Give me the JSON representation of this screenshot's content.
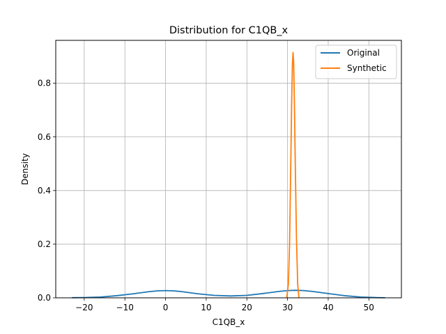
{
  "chart_data": {
    "type": "line",
    "title": "Distribution for C1QB_x",
    "xlabel": "C1QB_x",
    "ylabel": "Density",
    "xlim": [
      -27,
      58
    ],
    "ylim": [
      0,
      0.96
    ],
    "xticks": [
      -20,
      -10,
      0,
      10,
      20,
      30,
      40,
      50
    ],
    "yticks": [
      0.0,
      0.2,
      0.4,
      0.6,
      0.8
    ],
    "xtick_labels": [
      "−20",
      "−10",
      "0",
      "10",
      "20",
      "30",
      "40",
      "50"
    ],
    "ytick_labels": [
      "0.0",
      "0.2",
      "0.4",
      "0.6",
      "0.8"
    ],
    "grid": true,
    "legend_position": "top-right",
    "series": [
      {
        "name": "Original",
        "color": "#1f77b4",
        "x": [
          -23,
          -20,
          -16,
          -12,
          -8,
          -4,
          -2,
          0,
          2,
          4,
          8,
          12,
          16,
          20,
          24,
          28,
          30,
          32,
          34,
          36,
          40,
          44,
          48,
          52,
          54
        ],
        "y": [
          0.0005,
          0.001,
          0.003,
          0.008,
          0.015,
          0.023,
          0.026,
          0.027,
          0.026,
          0.023,
          0.015,
          0.009,
          0.007,
          0.009,
          0.016,
          0.024,
          0.027,
          0.028,
          0.027,
          0.024,
          0.016,
          0.008,
          0.003,
          0.0008,
          0.0004
        ]
      },
      {
        "name": "Synthetic",
        "color": "#ff7f0e",
        "x": [
          29.8,
          30.2,
          30.5,
          30.8,
          31.0,
          31.2,
          31.35,
          31.5,
          31.7,
          31.9,
          32.2,
          32.5,
          32.8
        ],
        "y": [
          0.0,
          0.05,
          0.2,
          0.5,
          0.72,
          0.87,
          0.915,
          0.88,
          0.72,
          0.5,
          0.22,
          0.05,
          0.0
        ]
      }
    ]
  }
}
